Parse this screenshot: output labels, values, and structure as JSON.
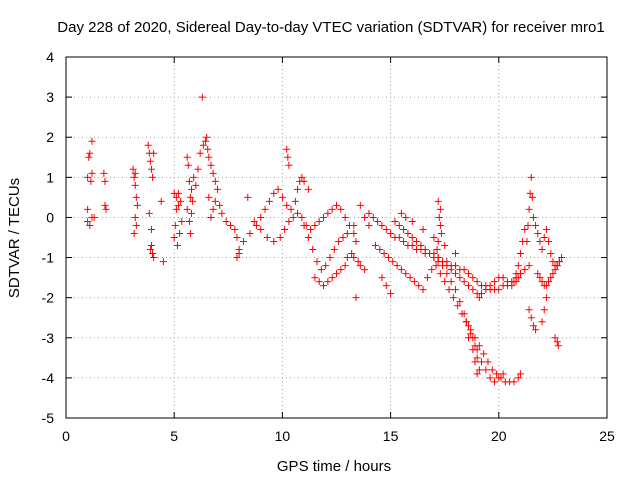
{
  "chart_data": {
    "type": "scatter",
    "title": "Day 228 of 2020, Sidereal Day-to-day VTEC variation (SDTVAR) for receiver mro1",
    "xlabel": "GPS time / hours",
    "ylabel": "SDTVAR / TECUs",
    "xlim": [
      0,
      25
    ],
    "ylim": [
      -5,
      4
    ],
    "xticks": [
      0,
      5,
      10,
      15,
      20,
      25
    ],
    "yticks": [
      -5,
      -4,
      -3,
      -2,
      -1,
      0,
      1,
      2,
      3,
      4
    ],
    "grid": true,
    "marker": "+",
    "color": "#ff0000",
    "series": [
      {
        "name": "SDTVAR",
        "x": [
          1.0,
          1.0,
          1.05,
          1.1,
          1.2,
          1.15,
          1.2,
          1.3,
          1.0,
          1.1,
          1.2,
          1.75,
          1.8,
          1.8,
          1.85,
          3.1,
          3.15,
          3.2,
          3.25,
          3.3,
          3.2,
          3.25,
          3.15,
          3.2,
          3.8,
          3.85,
          3.9,
          3.95,
          4.0,
          4.05,
          3.9,
          4.0,
          3.85,
          3.95,
          4.05,
          3.95,
          4.4,
          4.5,
          5.0,
          5.05,
          5.1,
          5.2,
          5.3,
          5.25,
          5.15,
          5.35,
          5.0,
          5.1,
          5.2,
          5.6,
          5.65,
          5.7,
          5.75,
          5.6,
          5.7,
          5.75,
          5.8,
          5.85,
          5.8,
          5.9,
          6.0,
          6.1,
          6.2,
          6.3,
          6.35,
          6.45,
          6.5,
          6.55,
          6.6,
          6.7,
          6.8,
          6.9,
          7.0,
          6.9,
          6.8,
          6.7,
          6.6,
          7.1,
          7.2,
          7.4,
          7.6,
          7.8,
          7.9,
          8.0,
          8.0,
          7.9,
          8.2,
          8.5,
          8.8,
          9.0,
          9.2,
          9.4,
          9.6,
          9.8,
          10.0,
          10.2,
          10.4,
          10.6,
          10.7,
          10.8,
          10.9,
          11.0,
          11.2,
          8.4,
          8.7,
          9.0,
          9.3,
          9.6,
          9.9,
          10.1,
          10.3,
          10.5,
          10.7,
          10.9,
          11.1,
          11.3,
          11.5,
          11.7,
          11.9,
          12.1,
          12.3,
          12.5,
          12.7,
          12.9,
          13.1,
          13.3,
          13.4,
          10.2,
          10.25,
          10.3,
          11.0,
          11.2,
          11.4,
          11.6,
          11.8,
          12.0,
          12.2,
          12.4,
          12.6,
          12.8,
          13.0,
          11.5,
          11.7,
          11.9,
          12.1,
          12.3,
          12.5,
          12.7,
          12.9,
          13.0,
          13.2,
          13.3,
          13.5,
          13.6,
          13.8,
          13.3,
          13.4,
          13.8,
          14.0,
          14.2,
          14.4,
          14.6,
          14.8,
          15.0,
          15.2,
          15.4,
          15.6,
          15.8,
          16.0,
          16.2,
          16.4,
          16.6,
          16.8,
          17.0,
          17.2,
          17.4,
          17.6,
          17.8,
          18.0,
          18.2,
          18.4,
          18.6,
          18.8,
          19.0,
          19.2,
          19.4,
          19.6,
          19.8,
          20.0,
          20.2,
          20.4,
          20.6,
          20.8,
          21.0,
          14.3,
          14.5,
          14.7,
          14.9,
          15.1,
          15.3,
          15.5,
          15.7,
          15.9,
          16.1,
          16.3,
          16.5,
          16.7,
          16.9,
          17.1,
          17.3,
          17.5,
          17.7,
          17.9,
          18.1,
          18.3,
          18.5,
          18.7,
          18.9,
          19.1,
          19.3,
          19.5,
          19.7,
          19.9,
          20.1,
          20.3,
          20.5,
          20.7,
          20.9,
          21.0,
          15.2,
          15.4,
          15.6,
          15.8,
          16.0,
          16.2,
          16.4,
          16.6,
          16.8,
          17.0,
          17.2,
          17.4,
          17.6,
          17.8,
          18.0,
          18.2,
          18.4,
          18.6,
          18.8,
          19.0,
          19.2,
          19.4,
          19.6,
          19.8,
          20.0,
          20.2,
          17.0,
          17.2,
          17.4,
          17.6,
          17.8,
          18.0,
          18.2,
          18.4,
          18.6,
          18.8,
          19.0,
          19.1,
          19.2,
          19.4,
          19.6,
          19.8,
          20.0,
          20.2,
          20.4,
          20.6,
          20.8,
          20.9,
          21.0,
          21.2,
          21.4,
          18.5,
          18.7,
          18.9,
          19.0,
          19.1,
          18.6,
          18.8,
          18.9,
          19.0,
          17.2,
          17.3,
          17.25,
          17.3,
          17.35,
          17.2,
          17.15,
          21.3,
          21.35,
          21.4,
          21.45,
          21.5,
          21.55,
          21.6,
          21.7,
          21.8,
          21.9,
          22.0,
          22.1,
          22.2,
          22.3,
          22.4,
          22.5,
          22.6,
          22.7,
          22.8,
          21.8,
          21.9,
          22.0,
          22.1,
          22.2,
          22.3,
          22.4,
          22.5,
          22.6,
          22.7,
          22.8,
          22.9,
          21.4,
          21.5,
          21.6,
          21.7,
          22.0,
          22.1,
          22.2,
          22.6,
          22.7,
          22.75,
          20.9,
          21.0,
          21.1,
          21.2,
          20.8,
          20.7,
          15.5,
          15.7,
          16.0,
          16.5,
          17.0,
          17.5,
          18.0,
          14.0,
          13.6,
          14.6,
          14.8,
          15.0
        ],
        "y": [
          0.2,
          1.0,
          1.5,
          1.6,
          1.9,
          0.9,
          1.1,
          0.0,
          -0.1,
          -0.2,
          0.0,
          1.1,
          0.9,
          0.3,
          0.2,
          1.2,
          1.0,
          0.8,
          0.5,
          0.3,
          0.0,
          -0.2,
          -0.4,
          1.1,
          1.8,
          1.6,
          1.4,
          1.2,
          1.0,
          1.6,
          -0.8,
          -0.9,
          0.1,
          -0.3,
          -1.0,
          -0.7,
          0.4,
          -1.1,
          -0.5,
          -0.2,
          0.2,
          0.6,
          0.4,
          -0.4,
          -0.7,
          -0.1,
          0.6,
          0.5,
          0.3,
          1.5,
          1.3,
          0.9,
          0.5,
          0.2,
          -0.1,
          -0.4,
          0.1,
          0.4,
          0.7,
          1.0,
          0.8,
          1.2,
          1.6,
          3.0,
          1.8,
          1.9,
          2.0,
          1.7,
          1.5,
          1.3,
          1.1,
          0.9,
          0.7,
          0.4,
          0.2,
          0.0,
          0.5,
          0.3,
          0.1,
          -0.1,
          -0.2,
          -0.3,
          -0.5,
          -0.8,
          -0.9,
          -1.0,
          -0.6,
          -0.4,
          -0.2,
          0.0,
          0.2,
          0.4,
          0.6,
          0.7,
          0.5,
          0.3,
          0.2,
          0.4,
          0.7,
          0.9,
          1.0,
          0.9,
          0.7,
          0.5,
          -0.1,
          -0.3,
          -0.5,
          -0.6,
          -0.5,
          -0.3,
          -0.1,
          0.0,
          0.1,
          0.0,
          -0.2,
          -0.3,
          -0.2,
          -0.1,
          0.0,
          0.1,
          0.2,
          0.3,
          0.2,
          0.0,
          -0.2,
          -0.4,
          -0.6,
          1.7,
          1.5,
          1.3,
          -0.2,
          -0.5,
          -0.8,
          -1.1,
          -1.3,
          -1.2,
          -1.0,
          -0.8,
          -0.6,
          -0.5,
          -0.4,
          -1.5,
          -1.6,
          -1.7,
          -1.6,
          -1.5,
          -1.4,
          -1.3,
          -1.2,
          -1.0,
          -0.9,
          -1.0,
          -1.1,
          -1.2,
          -1.3,
          -0.2,
          -2.0,
          0.0,
          0.1,
          0.0,
          -0.1,
          -0.2,
          -0.3,
          -0.4,
          -0.5,
          -0.5,
          -0.6,
          -0.7,
          -0.7,
          -0.8,
          -0.8,
          -0.9,
          -0.9,
          -1.0,
          -1.0,
          -1.1,
          -1.1,
          -1.2,
          -1.2,
          -1.3,
          -1.3,
          -1.4,
          -1.5,
          -1.6,
          -1.7,
          -1.7,
          -1.8,
          -1.8,
          -1.8,
          -1.7,
          -1.7,
          -1.6,
          -1.5,
          -1.4,
          -0.7,
          -0.8,
          -0.9,
          -1.0,
          -1.1,
          -1.2,
          -1.3,
          -1.4,
          -1.5,
          -1.6,
          -1.7,
          -1.8,
          -1.5,
          -1.3,
          -1.2,
          -1.4,
          -1.6,
          -1.8,
          -2.0,
          -2.2,
          -2.4,
          -2.6,
          -2.8,
          -3.0,
          -3.2,
          -3.4,
          -3.6,
          -3.8,
          -3.9,
          -4.0,
          -4.1,
          -4.1,
          -4.1,
          -4.0,
          -3.9,
          -0.1,
          -0.2,
          -0.3,
          -0.4,
          -0.5,
          -0.6,
          -0.7,
          -0.8,
          -0.9,
          -1.0,
          -1.1,
          -1.2,
          -1.4,
          -1.6,
          -1.8,
          -2.1,
          -2.4,
          -2.7,
          -3.0,
          -3.3,
          -3.6,
          -3.8,
          -4.0,
          -4.1,
          -4.0,
          -3.9,
          -0.9,
          -1.0,
          -1.1,
          -1.2,
          -1.3,
          -1.4,
          -1.5,
          -1.6,
          -1.7,
          -1.8,
          -1.9,
          -2.0,
          -1.9,
          -1.8,
          -1.7,
          -1.6,
          -1.5,
          -1.5,
          -1.6,
          -1.7,
          -1.6,
          -1.5,
          -1.4,
          -1.3,
          -1.2,
          -2.6,
          -2.9,
          -3.2,
          -3.5,
          -3.8,
          -3.0,
          -3.3,
          -3.6,
          -3.9,
          0.4,
          0.2,
          0.0,
          -0.2,
          -0.4,
          -0.6,
          -0.8,
          -0.6,
          -0.2,
          0.2,
          0.6,
          1.0,
          0.5,
          0.0,
          -0.2,
          -0.4,
          -0.6,
          -0.8,
          -0.5,
          -0.3,
          -0.6,
          -0.9,
          -1.1,
          -1.2,
          -1.2,
          -1.1,
          -1.4,
          -1.5,
          -1.6,
          -1.7,
          -1.7,
          -1.6,
          -1.5,
          -1.4,
          -1.3,
          -1.2,
          -1.1,
          -1.0,
          -2.3,
          -2.5,
          -2.7,
          -2.8,
          -2.6,
          -2.3,
          -2.0,
          -3.0,
          -3.1,
          -3.2,
          -1.2,
          -0.9,
          -0.6,
          -0.3,
          -1.4,
          -1.6,
          0.1,
          0.0,
          -0.1,
          -0.3,
          -0.5,
          -0.7,
          -0.9,
          -0.2,
          0.3,
          -1.5,
          -1.7,
          -1.9
        ]
      }
    ]
  }
}
